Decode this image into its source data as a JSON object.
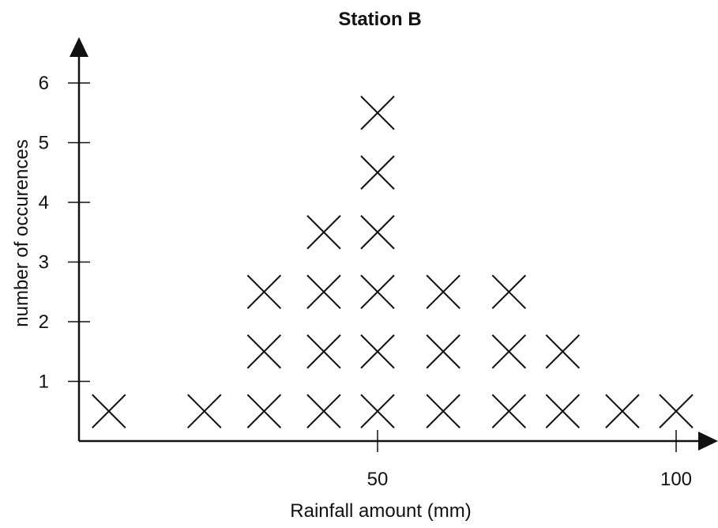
{
  "chart_data": {
    "type": "scatter",
    "style": "dot-plot with X markers",
    "title": "Station B",
    "xlabel": "Rainfall amount (mm)",
    "ylabel": "number of occurences",
    "xlim": [
      0,
      105
    ],
    "ylim": [
      0,
      6.5
    ],
    "xticks": [
      50,
      100
    ],
    "yticks": [
      1,
      2,
      3,
      4,
      5,
      6
    ],
    "grid": false,
    "marker": "cross",
    "columns": [
      {
        "x": 5,
        "count": 1
      },
      {
        "x": 21,
        "count": 1
      },
      {
        "x": 31,
        "count": 3
      },
      {
        "x": 41,
        "count": 4
      },
      {
        "x": 50,
        "count": 6
      },
      {
        "x": 61,
        "count": 3
      },
      {
        "x": 72,
        "count": 3
      },
      {
        "x": 81,
        "count": 2
      },
      {
        "x": 91,
        "count": 1
      },
      {
        "x": 100,
        "count": 1
      }
    ]
  }
}
